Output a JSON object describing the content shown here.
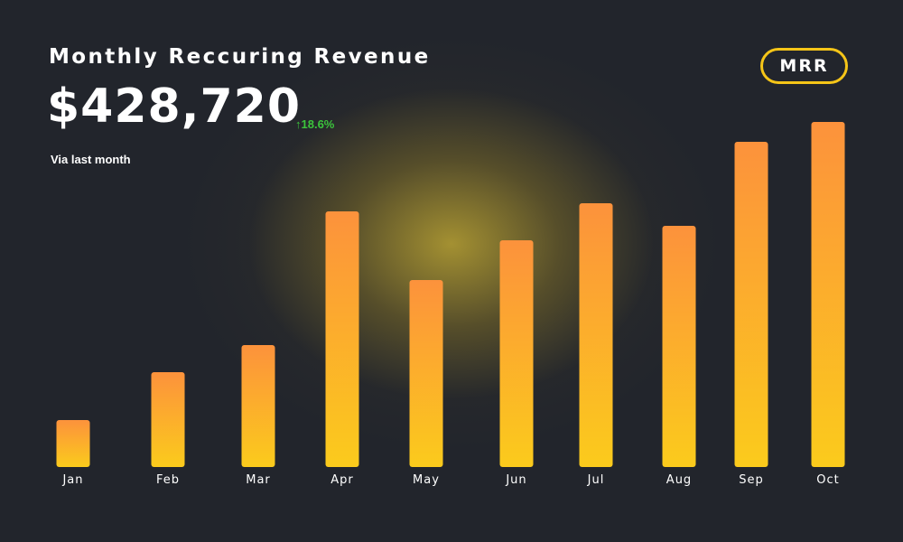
{
  "header": {
    "title": "Monthly Reccuring Revenue",
    "amount": "$428,720",
    "change": "↑18.6%",
    "subtitle": "Via last month",
    "badge": "MRR"
  },
  "colors": {
    "background": "#22252c",
    "bar_top": "#fc923c",
    "bar_bottom": "#fbcb1c",
    "badge_border": "#f5c518",
    "positive_change": "#3cc43c"
  },
  "chart_data": {
    "type": "bar",
    "categories": [
      "Jan",
      "Feb",
      "Mar",
      "Apr",
      "May",
      "Jun",
      "Jul",
      "Aug",
      "Sep",
      "Oct"
    ],
    "values": [
      52,
      105,
      135,
      283,
      207,
      251,
      292,
      267,
      360,
      382
    ],
    "title": "Monthly Reccuring Revenue",
    "xlabel": "",
    "ylabel": "",
    "ylim": [
      0,
      400
    ],
    "grid": false,
    "legend": "none"
  }
}
